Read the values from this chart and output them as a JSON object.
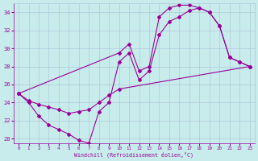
{
  "xlabel": "Windchill (Refroidissement éolien,°C)",
  "bg_color": "#c8ecec",
  "line_color": "#990099",
  "grid_color": "#b0c8d8",
  "line1_x": [
    0,
    1,
    2,
    3,
    4,
    5,
    6,
    7,
    8,
    9,
    10,
    11,
    12,
    13,
    14,
    15,
    16,
    17,
    18,
    19,
    20,
    21,
    22,
    23
  ],
  "line1_y": [
    25,
    24,
    22.5,
    21.5,
    21,
    20.5,
    19.8,
    19.5,
    23.0,
    24.0,
    28.5,
    29.5,
    26.5,
    27.5,
    31.5,
    33.0,
    33.5,
    34.2,
    34.5,
    34.0,
    32.5,
    29.0,
    28.5,
    28.0
  ],
  "line2_x": [
    0,
    10,
    11,
    12,
    13,
    14,
    15,
    16,
    17,
    18,
    19,
    20,
    21,
    22,
    23
  ],
  "line2_y": [
    25,
    29.5,
    30.5,
    27.5,
    28.0,
    33.5,
    34.5,
    34.8,
    34.8,
    34.5,
    34.0,
    32.5,
    29.0,
    28.5,
    28.0
  ],
  "line3_x": [
    0,
    1,
    2,
    3,
    4,
    5,
    6,
    7,
    8,
    9,
    10,
    23
  ],
  "line3_y": [
    25,
    24.2,
    23.8,
    23.5,
    23.2,
    22.8,
    23.0,
    23.2,
    24.0,
    24.8,
    25.5,
    28.0
  ],
  "ylim": [
    19.5,
    35
  ],
  "xlim": [
    -0.5,
    23.5
  ],
  "yticks": [
    20,
    22,
    24,
    26,
    28,
    30,
    32,
    34
  ],
  "xticks": [
    0,
    1,
    2,
    3,
    4,
    5,
    6,
    7,
    8,
    9,
    10,
    11,
    12,
    13,
    14,
    15,
    16,
    17,
    18,
    19,
    20,
    21,
    22,
    23
  ],
  "marker": "D",
  "markersize": 2.0,
  "linewidth": 0.8
}
